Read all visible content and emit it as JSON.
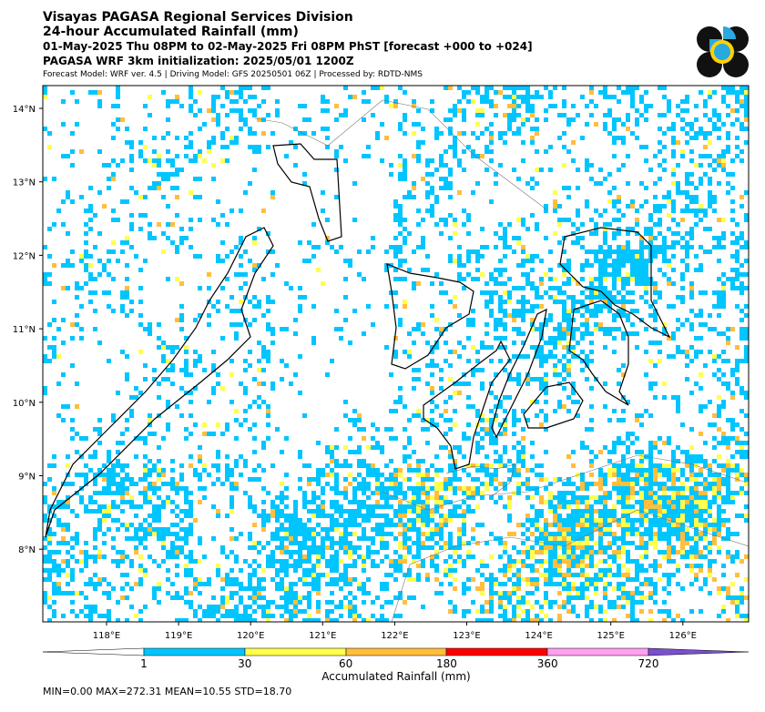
{
  "header": {
    "title": "Visayas PAGASA Regional Services Division",
    "subtitle": "24-hour Accumulated Rainfall (mm)",
    "period": "01-May-2025 Thu 08PM to 02-May-2025 Fri 08PM PhST [forecast +000 to +024]",
    "init": "PAGASA WRF 3km initialization: 2025/05/01 1200Z",
    "model": "Forecast Model: WRF ver. 4.5 | Driving Model: GFS 20250501 06Z | Processed by: RDTD-NMS"
  },
  "map": {
    "lat_labels": [
      "14°N",
      "13°N",
      "12°N",
      "11°N",
      "10°N",
      "9°N",
      "8°N"
    ],
    "lon_labels": [
      "118°E",
      "119°E",
      "120°E",
      "121°E",
      "122°E",
      "123°E",
      "124°E",
      "125°E",
      "126°E"
    ]
  },
  "colorbar": {
    "labels": [
      "1",
      "30",
      "60",
      "180",
      "360",
      "720"
    ],
    "title": "Accumulated Rainfall (mm)"
  },
  "stats": "MIN=0.00   MAX=272.31   MEAN=10.55   STD=18.70"
}
